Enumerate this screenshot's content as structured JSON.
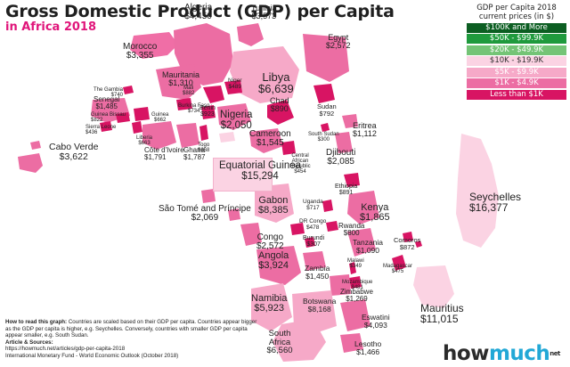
{
  "title": "Gross Domestic Product (GDP) per Capita",
  "subtitle": "in Africa 2018",
  "legend": {
    "title_line1": "GDP per Capita 2018",
    "title_line2": "current prices (in $)",
    "items": [
      {
        "label": "$100K and More",
        "color": "#0c5e22",
        "text": "#ffffff"
      },
      {
        "label": "$50K - $99.9K",
        "color": "#1f9a3d",
        "text": "#ffffff"
      },
      {
        "label": "$20K - $49.9K",
        "color": "#74c476",
        "text": "#ffffff"
      },
      {
        "label": "$10K - $19.9K",
        "color": "#fbd3e3",
        "text": "#333333"
      },
      {
        "label": "$5K - $9.9K",
        "color": "#f6a9c8",
        "text": "#ffffff"
      },
      {
        "label": "$1K - $4.9K",
        "color": "#ec6da3",
        "text": "#ffffff"
      },
      {
        "label": "Less than $1K",
        "color": "#d81463",
        "text": "#ffffff"
      }
    ]
  },
  "countries": [
    {
      "name": "Algeria",
      "value": "$4,450"
    },
    {
      "name": "Tunisia",
      "value": "$3,573"
    },
    {
      "name": "Egypt",
      "value": "$2,572"
    },
    {
      "name": "Morocco",
      "value": "$3,355"
    },
    {
      "name": "Libya",
      "value": "$6,639"
    },
    {
      "name": "Mauritania",
      "value": "$1,310"
    },
    {
      "name": "The Gambia",
      "value": "$740"
    },
    {
      "name": "Senegal",
      "value": "$1,485"
    },
    {
      "name": "Guinea Bissau",
      "value": "$822"
    },
    {
      "name": "Sierra Leone",
      "value": "$436"
    },
    {
      "name": "Mali",
      "value": "$882"
    },
    {
      "name": "Guinea",
      "value": "$662"
    },
    {
      "name": "Burkina Faso",
      "value": "$734"
    },
    {
      "name": "Niger",
      "value": "$489"
    },
    {
      "name": "Benin",
      "value": "$923"
    },
    {
      "name": "Nigeria",
      "value": "$2,050"
    },
    {
      "name": "Chad",
      "value": "$890"
    },
    {
      "name": "Sudan",
      "value": "$792"
    },
    {
      "name": "Eritrea",
      "value": "$1,112"
    },
    {
      "name": "South Sudan",
      "value": "$300"
    },
    {
      "name": "Djibouti",
      "value": "$2,085"
    },
    {
      "name": "Liberia",
      "value": "$663"
    },
    {
      "name": "Côte d'Ivoire",
      "value": "$1,791"
    },
    {
      "name": "Ghana",
      "value": "$1,787"
    },
    {
      "name": "Togo",
      "value": "$668"
    },
    {
      "name": "Cameroon",
      "value": "$1,545"
    },
    {
      "name": "Central African Republic",
      "value": "$454"
    },
    {
      "name": "Ethiopia",
      "value": "$891"
    },
    {
      "name": "Cabo Verde",
      "value": "$3,622"
    },
    {
      "name": "Equatorial Guinea",
      "value": "$15,294"
    },
    {
      "name": "Gabon",
      "value": "$8,385"
    },
    {
      "name": "Uganda",
      "value": "$717"
    },
    {
      "name": "Kenya",
      "value": "$1,865"
    },
    {
      "name": "São Tomé and Príncipe",
      "value": "$2,069"
    },
    {
      "name": "DR Congo",
      "value": "$478"
    },
    {
      "name": "Rwanda",
      "value": "$800"
    },
    {
      "name": "Burundi",
      "value": "$307"
    },
    {
      "name": "Seychelles",
      "value": "$16,377"
    },
    {
      "name": "Congo",
      "value": "$2,572"
    },
    {
      "name": "Tanzania",
      "value": "$1,090"
    },
    {
      "name": "Comoros",
      "value": "$872"
    },
    {
      "name": "Angola",
      "value": "$3,924"
    },
    {
      "name": "Malawi",
      "value": "$349"
    },
    {
      "name": "Zambia",
      "value": "$1,450"
    },
    {
      "name": "Madagascar",
      "value": "$475"
    },
    {
      "name": "Mozambique",
      "value": "$481"
    },
    {
      "name": "Zimbabwe",
      "value": "$1,269"
    },
    {
      "name": "Namibia",
      "value": "$5,923"
    },
    {
      "name": "Botswana",
      "value": "$8,168"
    },
    {
      "name": "Eswatini",
      "value": "$4,093"
    },
    {
      "name": "South Africa",
      "value": "$6,560"
    },
    {
      "name": "Lesotho",
      "value": "$1,466"
    },
    {
      "name": "Mauritius",
      "value": "$11,015"
    }
  ],
  "footer": {
    "howto_label": "How to read this graph:",
    "howto_text": "Countries are scaled based on their GDP per capita. Countries appear bigger as the GDP per capita is higher, e.g. Seychelles. Conversely, countries with smaller GDP per capita appear smaller, e.g. South Sudan.",
    "sources_label": "Article & Sources:",
    "source_1": "https://howmuch.net/articles/gdp-per-capita-2018",
    "source_2": "International Monetary Fund - World Economic Outlook (October 2018)"
  },
  "logo": {
    "part1": "how",
    "part2": "much",
    "suffix": "net"
  }
}
